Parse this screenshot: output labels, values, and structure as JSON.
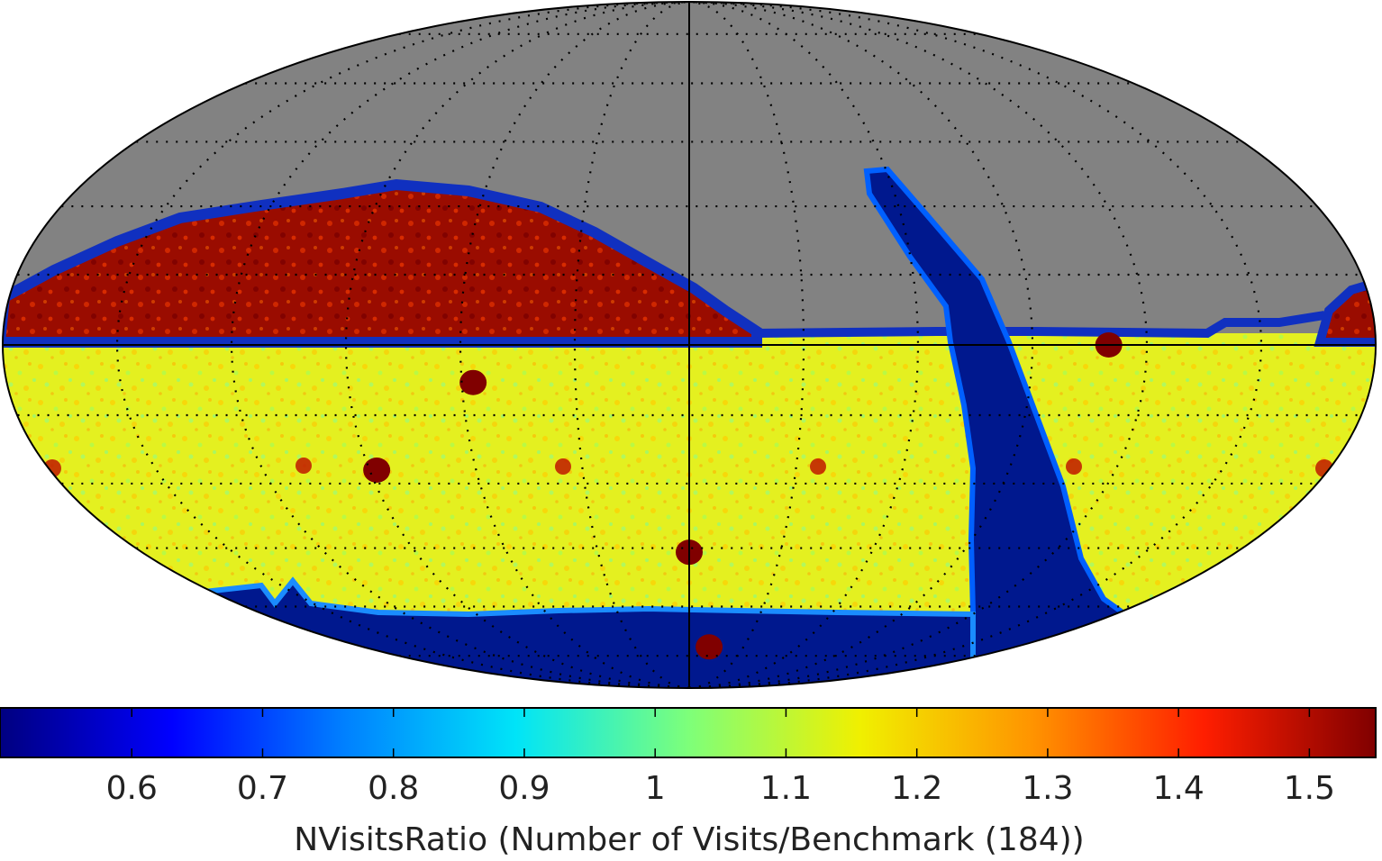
{
  "chart_data": {
    "type": "heatmap",
    "projection": "mollweide",
    "metric": "NVisitsRatio",
    "colorbar": {
      "label": "NVisitsRatio (Number of Visits/Benchmark (184))",
      "range": [
        0.5,
        1.55
      ],
      "ticks": [
        0.6,
        0.7,
        0.8,
        0.9,
        1.0,
        1.1,
        1.2,
        1.3,
        1.4,
        1.5
      ],
      "tick_labels": [
        "0.6",
        "0.7",
        "0.8",
        "0.9",
        "1",
        "1.1",
        "1.2",
        "1.3",
        "1.4",
        "1.5"
      ],
      "colormap": "jet",
      "stops": [
        "#000080",
        "#0000ff",
        "#0080ff",
        "#00e4f8",
        "#7dff7a",
        "#f0f000",
        "#ff9400",
        "#ff1e00",
        "#800000"
      ]
    },
    "no_data_color": "#828282",
    "regions": {
      "main_survey_ratio": 1.05,
      "north_ecliptic_ratio": 1.5,
      "galactic_plane_ratio": 0.5,
      "south_cap_ratio": 0.5,
      "deep_drilling_ratio": 1.55
    },
    "deep_drilling_fields": [
      {
        "lon": 57,
        "lat": -8
      },
      {
        "lon": 88,
        "lat": -27
      },
      {
        "lon": 0,
        "lat": -46
      },
      {
        "lon": -11,
        "lat": -72
      },
      {
        "lon": 250,
        "lat": 0
      }
    ],
    "graticule": {
      "meridian_spacing_deg": 30,
      "parallel_spacing_deg": 15,
      "style": "dotted",
      "solid_lines": [
        "equator",
        "central meridian"
      ]
    }
  }
}
